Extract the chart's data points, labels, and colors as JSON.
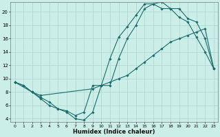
{
  "xlabel": "Humidex (Indice chaleur)",
  "bg_color": "#cceee8",
  "grid_color": "#aad4ce",
  "line_color": "#1a6b6b",
  "xlim": [
    -0.5,
    23.5
  ],
  "ylim": [
    3.5,
    21.5
  ],
  "yticks": [
    4,
    6,
    8,
    10,
    12,
    14,
    16,
    18,
    20
  ],
  "xticks": [
    0,
    1,
    2,
    3,
    4,
    5,
    6,
    7,
    8,
    9,
    10,
    11,
    12,
    13,
    14,
    15,
    16,
    17,
    18,
    19,
    20,
    21,
    22,
    23
  ],
  "line1": {
    "x": [
      0,
      1,
      2,
      3,
      4,
      5,
      6,
      7,
      8,
      9,
      10,
      11,
      12,
      13,
      14,
      15,
      16,
      17,
      18,
      19,
      20,
      21,
      22,
      23
    ],
    "y": [
      9.5,
      9.0,
      8.0,
      7.0,
      6.0,
      5.5,
      5.0,
      4.0,
      3.8,
      5.0,
      9.0,
      9.0,
      13.0,
      16.0,
      18.0,
      20.5,
      21.2,
      21.5,
      20.5,
      20.5,
      19.0,
      18.5,
      16.0,
      11.5
    ]
  },
  "line2": {
    "x": [
      0,
      1,
      2,
      3,
      4,
      5,
      6,
      7,
      8,
      9,
      10,
      11,
      12,
      13,
      14,
      15,
      16,
      17,
      18,
      19,
      20,
      21,
      22,
      23
    ],
    "y": [
      9.5,
      9.0,
      8.0,
      7.2,
      6.5,
      5.5,
      5.2,
      4.5,
      5.0,
      9.0,
      9.0,
      13.0,
      16.2,
      17.8,
      19.5,
      21.2,
      21.2,
      20.5,
      20.5,
      19.2,
      18.5,
      16.2,
      14.0,
      11.5
    ]
  },
  "line3": {
    "x": [
      0,
      2,
      3,
      9,
      10,
      11,
      12,
      13,
      14,
      15,
      16,
      17,
      18,
      19,
      20,
      21,
      22,
      23
    ],
    "y": [
      9.5,
      8.0,
      7.5,
      8.5,
      9.0,
      9.5,
      10.0,
      10.5,
      11.5,
      12.5,
      13.5,
      14.5,
      15.5,
      16.0,
      16.5,
      17.0,
      17.5,
      11.5
    ]
  }
}
